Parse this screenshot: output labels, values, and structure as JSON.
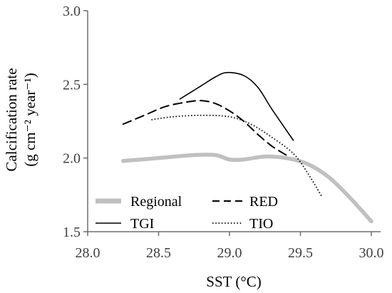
{
  "chart_data": {
    "type": "line",
    "xlabel": "SST (°C)",
    "ylabel": [
      "Calcification rate",
      "(g cm⁻² year⁻¹)"
    ],
    "xlim": [
      28.0,
      30.0
    ],
    "ylim": [
      1.5,
      3.0
    ],
    "xticks": [
      28.0,
      28.5,
      29.0,
      29.5,
      30.0
    ],
    "yticks": [
      1.5,
      2.0,
      2.5,
      3.0
    ],
    "xtick_labels": [
      "28.0",
      "28.5",
      "29.0",
      "29.5",
      "30.0"
    ],
    "ytick_labels": [
      "1.5",
      "2.0",
      "2.5",
      "3.0"
    ],
    "grid": false,
    "legend_position": "lower-left",
    "series": [
      {
        "name": "Regional",
        "style": "thick-solid",
        "color": "#c0c0c0",
        "points": [
          [
            28.25,
            1.98
          ],
          [
            28.5,
            2.0
          ],
          [
            28.75,
            2.02
          ],
          [
            28.9,
            2.02
          ],
          [
            29.0,
            1.99
          ],
          [
            29.1,
            1.99
          ],
          [
            29.25,
            2.01
          ],
          [
            29.4,
            2.0
          ],
          [
            29.55,
            1.96
          ],
          [
            29.7,
            1.87
          ],
          [
            29.85,
            1.73
          ],
          [
            30.0,
            1.57
          ]
        ]
      },
      {
        "name": "RED",
        "style": "dashed",
        "color": "#000000",
        "points": [
          [
            28.25,
            2.23
          ],
          [
            28.4,
            2.29
          ],
          [
            28.55,
            2.35
          ],
          [
            28.7,
            2.38
          ],
          [
            28.8,
            2.39
          ],
          [
            28.9,
            2.37
          ],
          [
            29.0,
            2.32
          ],
          [
            29.1,
            2.25
          ],
          [
            29.2,
            2.16
          ],
          [
            29.3,
            2.08
          ],
          [
            29.4,
            2.02
          ]
        ]
      },
      {
        "name": "TGI",
        "style": "solid",
        "color": "#000000",
        "points": [
          [
            28.65,
            2.4
          ],
          [
            28.8,
            2.49
          ],
          [
            28.9,
            2.55
          ],
          [
            28.98,
            2.58
          ],
          [
            29.1,
            2.56
          ],
          [
            29.2,
            2.48
          ],
          [
            29.3,
            2.33
          ],
          [
            29.45,
            2.12
          ]
        ]
      },
      {
        "name": "TIO",
        "style": "dotted",
        "color": "#000000",
        "points": [
          [
            28.45,
            2.26
          ],
          [
            28.6,
            2.28
          ],
          [
            28.8,
            2.29
          ],
          [
            29.0,
            2.28
          ],
          [
            29.15,
            2.23
          ],
          [
            29.3,
            2.14
          ],
          [
            29.45,
            2.03
          ],
          [
            29.55,
            1.9
          ],
          [
            29.65,
            1.74
          ]
        ]
      }
    ]
  }
}
